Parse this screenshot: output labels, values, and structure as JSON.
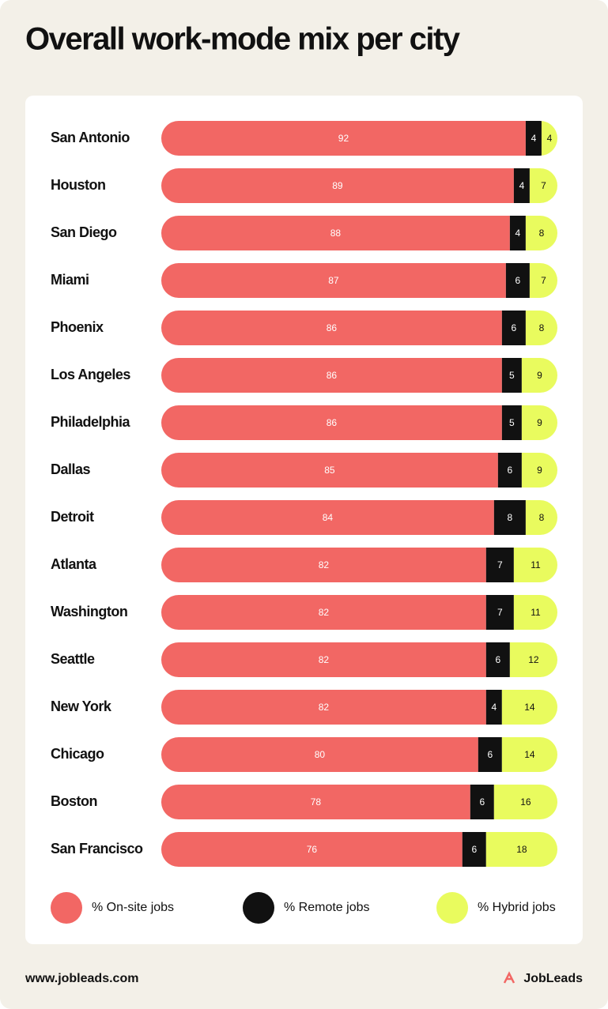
{
  "chart_data": {
    "type": "stacked-bar-horizontal",
    "title": "Overall work-mode mix per city",
    "categories": [
      "San Antonio",
      "Houston",
      "San Diego",
      "Miami",
      "Phoenix",
      "Los Angeles",
      "Philadelphia",
      "Dallas",
      "Detroit",
      "Atlanta",
      "Washington",
      "Seattle",
      "New York",
      "Chicago",
      "Boston",
      "San Francisco"
    ],
    "series": [
      {
        "name": "% On-site jobs",
        "color": "#f26764",
        "values": [
          92,
          89,
          88,
          87,
          86,
          86,
          86,
          85,
          84,
          82,
          82,
          82,
          82,
          80,
          78,
          76
        ]
      },
      {
        "name": "% Remote jobs",
        "color": "#111111",
        "values": [
          4,
          4,
          4,
          6,
          6,
          5,
          5,
          6,
          8,
          7,
          7,
          6,
          4,
          6,
          6,
          6
        ]
      },
      {
        "name": "% Hybrid jobs",
        "color": "#e9fb5e",
        "values": [
          4,
          7,
          8,
          7,
          8,
          9,
          9,
          9,
          8,
          11,
          11,
          12,
          14,
          14,
          16,
          18
        ]
      }
    ],
    "xlim": [
      0,
      100
    ],
    "source": "www.jobleads.com",
    "brand": "JobLeads"
  }
}
